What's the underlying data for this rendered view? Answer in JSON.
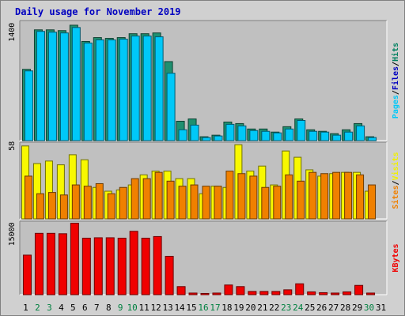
{
  "chart_data": {
    "type": "bar",
    "title": "Daily usage for November 2019",
    "categories": [
      "1",
      "2",
      "3",
      "4",
      "5",
      "6",
      "7",
      "8",
      "9",
      "10",
      "11",
      "12",
      "13",
      "14",
      "15",
      "16",
      "17",
      "18",
      "19",
      "20",
      "21",
      "22",
      "23",
      "24",
      "25",
      "26",
      "27",
      "28",
      "29",
      "30",
      "31"
    ],
    "weekend_days": [
      "2",
      "3",
      "9",
      "10",
      "16",
      "17",
      "23",
      "24",
      "30"
    ],
    "weekend_label_color": "#008040",
    "weekday_label_color": "#000000",
    "panels": [
      {
        "name": "hits-files-pages",
        "ytick_label": "1400",
        "ylim": [
          0,
          1550
        ],
        "legend": [
          "Pages",
          "/",
          "Files",
          "/",
          "Hits"
        ],
        "legend_colors": [
          "#00c8f8",
          "#000000",
          "#0000c0",
          "#000000",
          "#008060"
        ],
        "series": [
          {
            "name": "Hits",
            "color": "#1f9070",
            "values": [
              920,
              1430,
              1430,
              1420,
              1490,
              1280,
              1330,
              1320,
              1330,
              1380,
              1380,
              1390,
              1020,
              250,
              280,
              50,
              70,
              240,
              220,
              150,
              150,
              110,
              180,
              280,
              140,
              120,
              90,
              140,
              220,
              50,
              0
            ]
          },
          {
            "name": "Files",
            "color": "#00c8f8",
            "values": [
              900,
              1410,
              1400,
              1390,
              1460,
              1260,
              1300,
              1300,
              1310,
              1350,
              1350,
              1340,
              870,
              140,
              200,
              40,
              60,
              210,
              190,
              130,
              120,
              100,
              150,
              260,
              120,
              110,
              70,
              110,
              190,
              40,
              0
            ]
          }
        ]
      },
      {
        "name": "visits-sites",
        "ytick_label": "58",
        "ylim": [
          0,
          61
        ],
        "legend": [
          "Sites",
          "/",
          "Visits"
        ],
        "legend_colors": [
          "#f08000",
          "#000000",
          "#f0f000"
        ],
        "series": [
          {
            "name": "Visits",
            "color": "#f8f800",
            "values": [
              58,
              44,
              46,
              43,
              51,
              47,
              25,
              22,
              23,
              27,
              35,
              38,
              38,
              32,
              32,
              20,
              26,
              25,
              59,
              38,
              42,
              27,
              54,
              49,
              39,
              34,
              36,
              37,
              37,
              22,
              0
            ]
          },
          {
            "name": "Sites",
            "color": "#f08000",
            "values": [
              34,
              20,
              21,
              19,
              27,
              26,
              28,
              20,
              25,
              32,
              32,
              37,
              30,
              26,
              27,
              26,
              26,
              38,
              36,
              34,
              25,
              26,
              35,
              30,
              37,
              36,
              37,
              37,
              35,
              27,
              0
            ]
          }
        ]
      },
      {
        "name": "kbytes",
        "ytick_label": "15000",
        "ylim": [
          0,
          18200
        ],
        "legend": [
          "KBytes"
        ],
        "legend_colors": [
          "#f00000"
        ],
        "series": [
          {
            "name": "KBytes",
            "color": "#f00000",
            "values": [
              9800,
              15200,
              15200,
              15100,
              17700,
              14000,
              14100,
              14100,
              14000,
              15700,
              14000,
              14400,
              9500,
              2000,
              400,
              300,
              400,
              2400,
              2000,
              800,
              800,
              800,
              1200,
              2700,
              700,
              500,
              400,
              700,
              2300,
              400,
              0
            ]
          }
        ]
      }
    ]
  }
}
